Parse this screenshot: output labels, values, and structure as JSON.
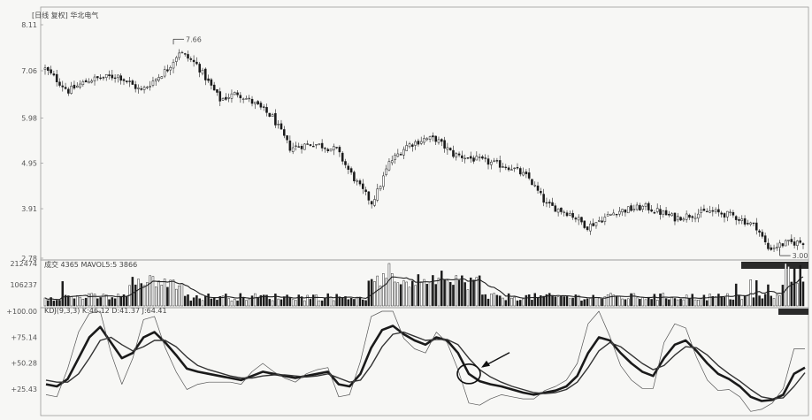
{
  "chart_data": [
    {
      "type": "candlestick",
      "panel": "price",
      "title": "[日线 复权] 华北电气",
      "yticks": [
        "8.11",
        "7.06",
        "5.98",
        "4.95",
        "3.91",
        "2.78"
      ],
      "ytick_values": [
        8.11,
        7.06,
        5.98,
        4.95,
        3.91,
        2.78
      ],
      "ylim": [
        2.78,
        8.11
      ],
      "annotations": [
        {
          "text": "7.66",
          "index": 44,
          "value": 7.66
        },
        {
          "text": "3.00",
          "index": 252,
          "value": 3.0
        }
      ],
      "close_keypoints": [
        [
          0,
          7.1
        ],
        [
          8,
          6.6
        ],
        [
          15,
          6.85
        ],
        [
          25,
          6.95
        ],
        [
          33,
          6.6
        ],
        [
          42,
          7.1
        ],
        [
          46,
          7.5
        ],
        [
          52,
          7.2
        ],
        [
          56,
          6.8
        ],
        [
          60,
          6.4
        ],
        [
          66,
          6.55
        ],
        [
          72,
          6.3
        ],
        [
          78,
          6.0
        ],
        [
          84,
          5.3
        ],
        [
          92,
          5.4
        ],
        [
          100,
          5.25
        ],
        [
          104,
          4.8
        ],
        [
          108,
          4.4
        ],
        [
          112,
          4.05
        ],
        [
          114,
          4.3
        ],
        [
          118,
          4.95
        ],
        [
          124,
          5.35
        ],
        [
          130,
          5.5
        ],
        [
          134,
          5.5
        ],
        [
          140,
          5.15
        ],
        [
          150,
          5.0
        ],
        [
          160,
          4.85
        ],
        [
          166,
          4.6
        ],
        [
          172,
          4.0
        ],
        [
          180,
          3.8
        ],
        [
          186,
          3.5
        ],
        [
          196,
          3.85
        ],
        [
          206,
          3.95
        ],
        [
          216,
          3.7
        ],
        [
          228,
          3.85
        ],
        [
          236,
          3.75
        ],
        [
          244,
          3.5
        ],
        [
          248,
          3.0
        ],
        [
          254,
          3.12
        ],
        [
          260,
          3.15
        ]
      ],
      "candle_count": 261
    },
    {
      "type": "bar",
      "panel": "volume",
      "header": "成交  4365  MAVOL5:5 3866",
      "yticks": [
        "212474",
        "106237"
      ],
      "ytick_values": [
        212474,
        106237
      ],
      "ylim": [
        0,
        212474
      ]
    },
    {
      "type": "line",
      "panel": "oscillator",
      "header": "KDJ(9,3,3)  K:46.12  D:41.37  J:64.41",
      "yticks": [
        "+100.00",
        "+75.14",
        "+50.28",
        "+25.43"
      ],
      "ytick_values": [
        100,
        75.14,
        50.28,
        25.43
      ],
      "ylim": [
        0,
        100
      ],
      "series": [
        {
          "name": "K",
          "values": [
            30,
            28,
            35,
            55,
            75,
            85,
            70,
            55,
            60,
            75,
            80,
            70,
            58,
            45,
            42,
            40,
            38,
            36,
            34,
            38,
            42,
            40,
            38,
            36,
            38,
            40,
            42,
            30,
            28,
            40,
            65,
            82,
            86,
            78,
            72,
            68,
            75,
            72,
            60,
            40,
            33,
            30,
            28,
            25,
            22,
            20,
            22,
            24,
            28,
            38,
            60,
            75,
            72,
            60,
            50,
            42,
            38,
            55,
            68,
            72,
            62,
            50,
            40,
            35,
            28,
            18,
            14,
            15,
            20,
            40,
            46
          ]
        },
        {
          "name": "D",
          "values": [
            34,
            32,
            32,
            40,
            55,
            72,
            75,
            68,
            62,
            66,
            72,
            72,
            66,
            56,
            48,
            44,
            41,
            38,
            36,
            36,
            38,
            39,
            39,
            38,
            37,
            38,
            40,
            36,
            32,
            34,
            48,
            66,
            78,
            80,
            76,
            72,
            73,
            73,
            68,
            55,
            44,
            37,
            32,
            28,
            25,
            22,
            21,
            22,
            25,
            32,
            46,
            62,
            70,
            66,
            58,
            50,
            44,
            48,
            58,
            66,
            65,
            58,
            48,
            40,
            33,
            25,
            18,
            16,
            17,
            28,
            41
          ]
        },
        {
          "name": "J",
          "values": [
            20,
            18,
            45,
            80,
            98,
            100,
            60,
            30,
            55,
            92,
            95,
            65,
            42,
            25,
            30,
            32,
            32,
            32,
            30,
            42,
            50,
            42,
            36,
            32,
            40,
            44,
            46,
            18,
            20,
            52,
            95,
            100,
            100,
            74,
            64,
            60,
            80,
            70,
            44,
            12,
            10,
            16,
            20,
            18,
            16,
            16,
            24,
            28,
            34,
            50,
            88,
            100,
            76,
            48,
            34,
            26,
            26,
            70,
            88,
            84,
            56,
            34,
            24,
            25,
            18,
            4,
            6,
            12,
            26,
            64,
            64
          ]
        }
      ],
      "circle_index": 39
    }
  ]
}
